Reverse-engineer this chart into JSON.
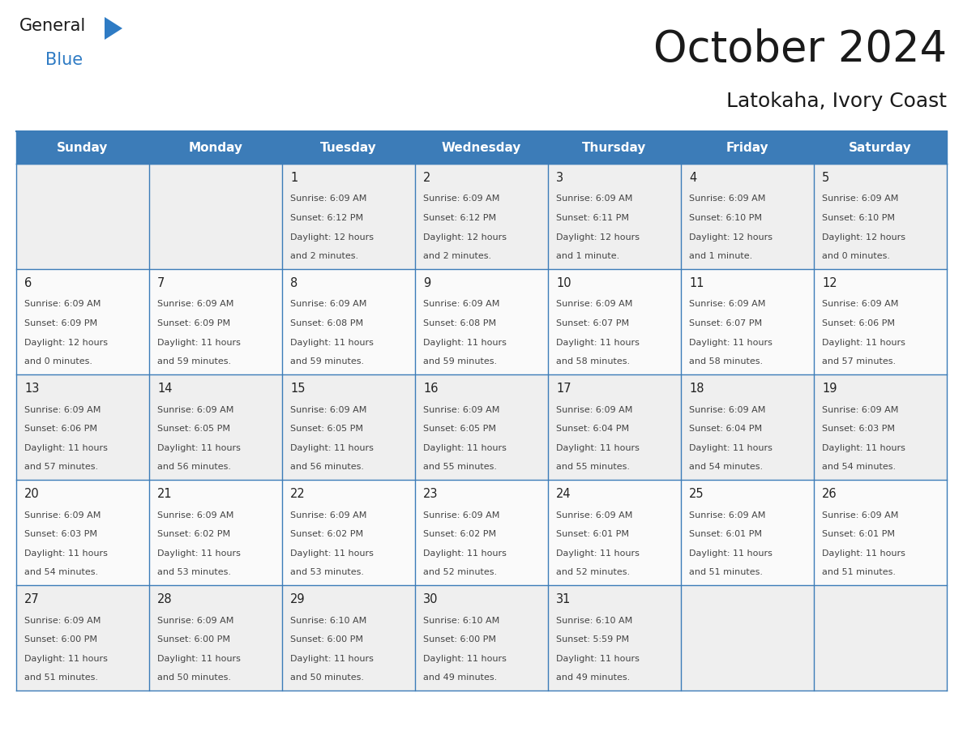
{
  "title": "October 2024",
  "subtitle": "Latokaha, Ivory Coast",
  "header_bg_color": "#3C7CB8",
  "header_text_color": "#FFFFFF",
  "border_color": "#3C7CB8",
  "text_color_dark": "#222222",
  "text_color_info": "#444444",
  "cell_bg_even": "#EFEFEF",
  "cell_bg_odd": "#FAFAFA",
  "days_of_week": [
    "Sunday",
    "Monday",
    "Tuesday",
    "Wednesday",
    "Thursday",
    "Friday",
    "Saturday"
  ],
  "logo_general_color": "#1a1a1a",
  "logo_blue_color": "#2E7BC4",
  "title_fontsize": 38,
  "subtitle_fontsize": 18,
  "header_fontsize": 11,
  "day_num_fontsize": 10.5,
  "info_fontsize": 8.0,
  "calendar_data": [
    [
      {
        "day": "",
        "sunrise": "",
        "sunset": "",
        "daylight_h": "",
        "daylight_m": ""
      },
      {
        "day": "",
        "sunrise": "",
        "sunset": "",
        "daylight_h": "",
        "daylight_m": ""
      },
      {
        "day": "1",
        "sunrise": "6:09 AM",
        "sunset": "6:12 PM",
        "daylight_h": "12 hours",
        "daylight_m": "and 2 minutes."
      },
      {
        "day": "2",
        "sunrise": "6:09 AM",
        "sunset": "6:12 PM",
        "daylight_h": "12 hours",
        "daylight_m": "and 2 minutes."
      },
      {
        "day": "3",
        "sunrise": "6:09 AM",
        "sunset": "6:11 PM",
        "daylight_h": "12 hours",
        "daylight_m": "and 1 minute."
      },
      {
        "day": "4",
        "sunrise": "6:09 AM",
        "sunset": "6:10 PM",
        "daylight_h": "12 hours",
        "daylight_m": "and 1 minute."
      },
      {
        "day": "5",
        "sunrise": "6:09 AM",
        "sunset": "6:10 PM",
        "daylight_h": "12 hours",
        "daylight_m": "and 0 minutes."
      }
    ],
    [
      {
        "day": "6",
        "sunrise": "6:09 AM",
        "sunset": "6:09 PM",
        "daylight_h": "12 hours",
        "daylight_m": "and 0 minutes."
      },
      {
        "day": "7",
        "sunrise": "6:09 AM",
        "sunset": "6:09 PM",
        "daylight_h": "11 hours",
        "daylight_m": "and 59 minutes."
      },
      {
        "day": "8",
        "sunrise": "6:09 AM",
        "sunset": "6:08 PM",
        "daylight_h": "11 hours",
        "daylight_m": "and 59 minutes."
      },
      {
        "day": "9",
        "sunrise": "6:09 AM",
        "sunset": "6:08 PM",
        "daylight_h": "11 hours",
        "daylight_m": "and 59 minutes."
      },
      {
        "day": "10",
        "sunrise": "6:09 AM",
        "sunset": "6:07 PM",
        "daylight_h": "11 hours",
        "daylight_m": "and 58 minutes."
      },
      {
        "day": "11",
        "sunrise": "6:09 AM",
        "sunset": "6:07 PM",
        "daylight_h": "11 hours",
        "daylight_m": "and 58 minutes."
      },
      {
        "day": "12",
        "sunrise": "6:09 AM",
        "sunset": "6:06 PM",
        "daylight_h": "11 hours",
        "daylight_m": "and 57 minutes."
      }
    ],
    [
      {
        "day": "13",
        "sunrise": "6:09 AM",
        "sunset": "6:06 PM",
        "daylight_h": "11 hours",
        "daylight_m": "and 57 minutes."
      },
      {
        "day": "14",
        "sunrise": "6:09 AM",
        "sunset": "6:05 PM",
        "daylight_h": "11 hours",
        "daylight_m": "and 56 minutes."
      },
      {
        "day": "15",
        "sunrise": "6:09 AM",
        "sunset": "6:05 PM",
        "daylight_h": "11 hours",
        "daylight_m": "and 56 minutes."
      },
      {
        "day": "16",
        "sunrise": "6:09 AM",
        "sunset": "6:05 PM",
        "daylight_h": "11 hours",
        "daylight_m": "and 55 minutes."
      },
      {
        "day": "17",
        "sunrise": "6:09 AM",
        "sunset": "6:04 PM",
        "daylight_h": "11 hours",
        "daylight_m": "and 55 minutes."
      },
      {
        "day": "18",
        "sunrise": "6:09 AM",
        "sunset": "6:04 PM",
        "daylight_h": "11 hours",
        "daylight_m": "and 54 minutes."
      },
      {
        "day": "19",
        "sunrise": "6:09 AM",
        "sunset": "6:03 PM",
        "daylight_h": "11 hours",
        "daylight_m": "and 54 minutes."
      }
    ],
    [
      {
        "day": "20",
        "sunrise": "6:09 AM",
        "sunset": "6:03 PM",
        "daylight_h": "11 hours",
        "daylight_m": "and 54 minutes."
      },
      {
        "day": "21",
        "sunrise": "6:09 AM",
        "sunset": "6:02 PM",
        "daylight_h": "11 hours",
        "daylight_m": "and 53 minutes."
      },
      {
        "day": "22",
        "sunrise": "6:09 AM",
        "sunset": "6:02 PM",
        "daylight_h": "11 hours",
        "daylight_m": "and 53 minutes."
      },
      {
        "day": "23",
        "sunrise": "6:09 AM",
        "sunset": "6:02 PM",
        "daylight_h": "11 hours",
        "daylight_m": "and 52 minutes."
      },
      {
        "day": "24",
        "sunrise": "6:09 AM",
        "sunset": "6:01 PM",
        "daylight_h": "11 hours",
        "daylight_m": "and 52 minutes."
      },
      {
        "day": "25",
        "sunrise": "6:09 AM",
        "sunset": "6:01 PM",
        "daylight_h": "11 hours",
        "daylight_m": "and 51 minutes."
      },
      {
        "day": "26",
        "sunrise": "6:09 AM",
        "sunset": "6:01 PM",
        "daylight_h": "11 hours",
        "daylight_m": "and 51 minutes."
      }
    ],
    [
      {
        "day": "27",
        "sunrise": "6:09 AM",
        "sunset": "6:00 PM",
        "daylight_h": "11 hours",
        "daylight_m": "and 51 minutes."
      },
      {
        "day": "28",
        "sunrise": "6:09 AM",
        "sunset": "6:00 PM",
        "daylight_h": "11 hours",
        "daylight_m": "and 50 minutes."
      },
      {
        "day": "29",
        "sunrise": "6:10 AM",
        "sunset": "6:00 PM",
        "daylight_h": "11 hours",
        "daylight_m": "and 50 minutes."
      },
      {
        "day": "30",
        "sunrise": "6:10 AM",
        "sunset": "6:00 PM",
        "daylight_h": "11 hours",
        "daylight_m": "and 49 minutes."
      },
      {
        "day": "31",
        "sunrise": "6:10 AM",
        "sunset": "5:59 PM",
        "daylight_h": "11 hours",
        "daylight_m": "and 49 minutes."
      },
      {
        "day": "",
        "sunrise": "",
        "sunset": "",
        "daylight_h": "",
        "daylight_m": ""
      },
      {
        "day": "",
        "sunrise": "",
        "sunset": "",
        "daylight_h": "",
        "daylight_m": ""
      }
    ]
  ]
}
